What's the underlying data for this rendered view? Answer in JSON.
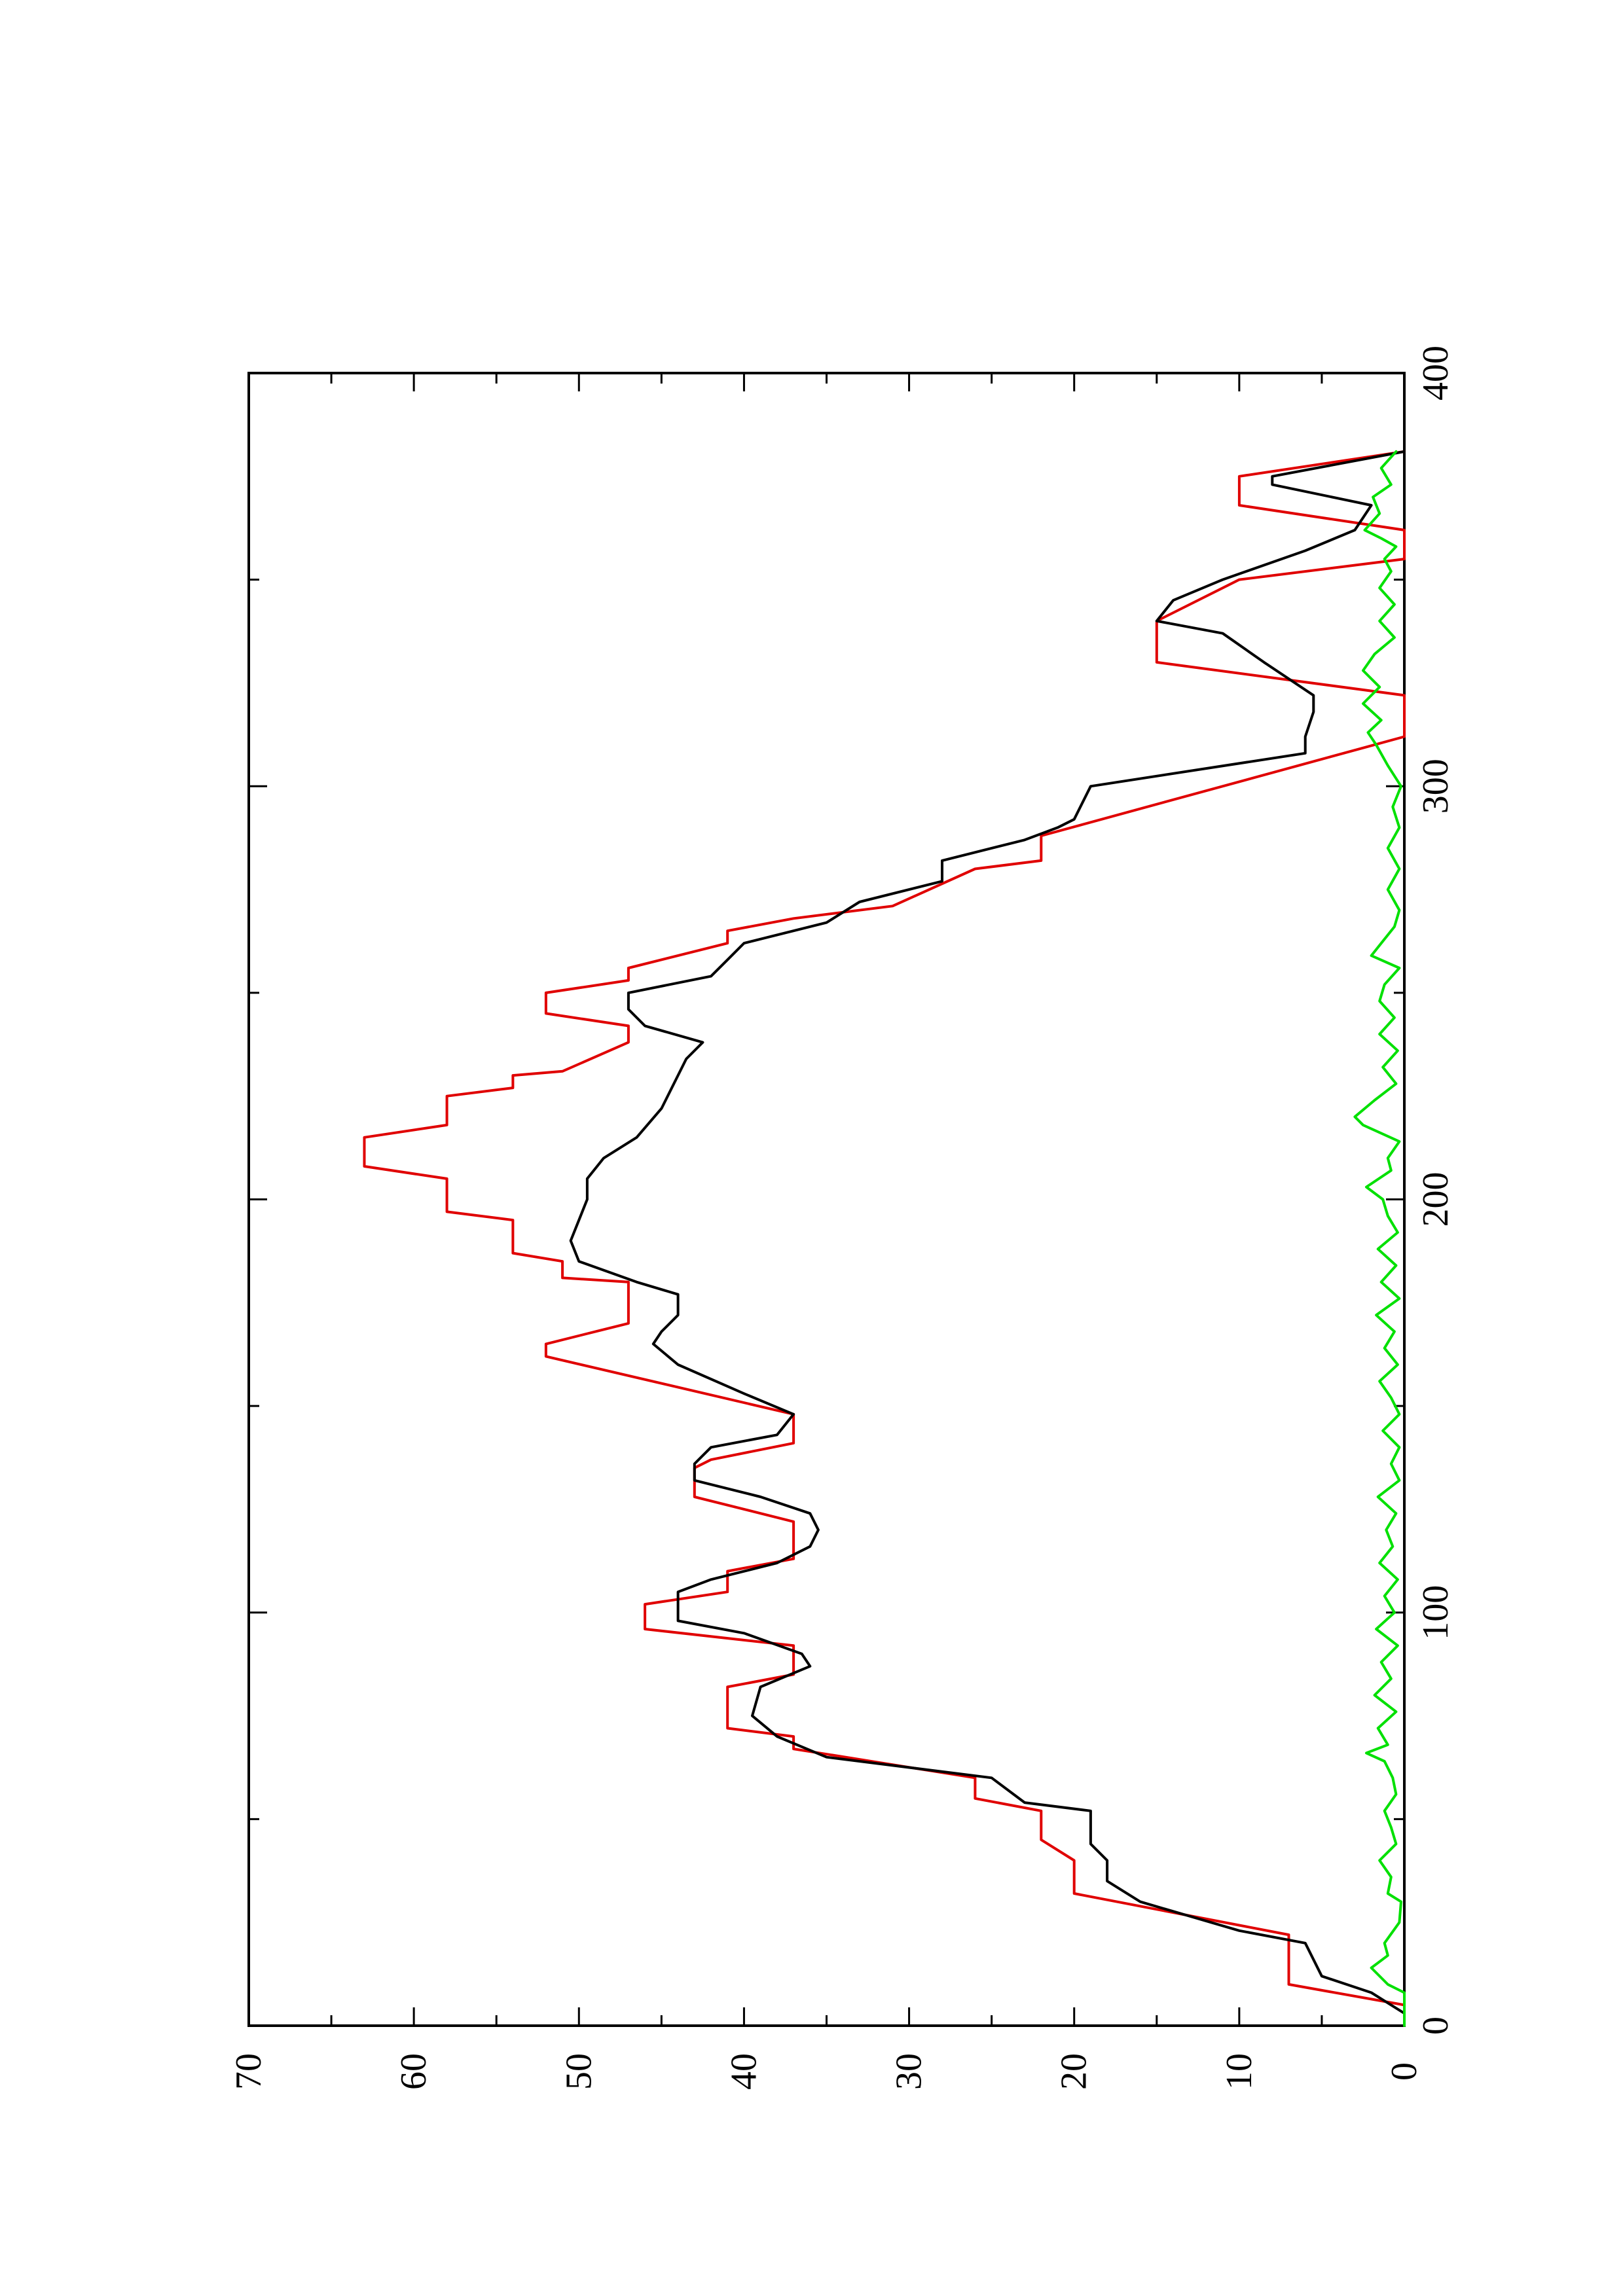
{
  "chart_data": {
    "type": "line",
    "orientation": "rotated 90° counter-clockwise (landscape plot on portrait page)",
    "title": "",
    "xlabel": "",
    "ylabel": "",
    "xlim": [
      0,
      400
    ],
    "ylim": [
      0,
      70
    ],
    "x_ticks": [
      0,
      100,
      200,
      300,
      400
    ],
    "x_tick_labels": [
      "0",
      "100",
      "200",
      "300",
      "400"
    ],
    "x_minor_ticks": [
      50,
      150,
      250,
      350
    ],
    "y_ticks": [
      0,
      10,
      20,
      30,
      40,
      50,
      60,
      70
    ],
    "y_tick_labels": [
      "0",
      "10",
      "20",
      "30",
      "40",
      "50",
      "60",
      "70"
    ],
    "y_minor_ticks": [
      5,
      15,
      25,
      35,
      45,
      55,
      65
    ],
    "grid": false,
    "legend": "none",
    "series": [
      {
        "color": "#e00000",
        "points": [
          [
            0,
            0
          ],
          [
            5,
            0
          ],
          [
            10,
            7
          ],
          [
            22,
            7
          ],
          [
            32,
            20
          ],
          [
            40,
            20
          ],
          [
            45,
            22
          ],
          [
            52,
            22
          ],
          [
            55,
            26
          ],
          [
            60,
            26
          ],
          [
            67,
            37
          ],
          [
            70,
            37
          ],
          [
            72,
            41
          ],
          [
            82,
            41
          ],
          [
            85,
            37
          ],
          [
            92,
            37
          ],
          [
            96,
            46
          ],
          [
            102,
            46
          ],
          [
            105,
            41
          ],
          [
            110,
            41
          ],
          [
            113,
            37
          ],
          [
            122,
            37
          ],
          [
            128,
            43
          ],
          [
            135,
            43
          ],
          [
            137,
            42
          ],
          [
            141,
            37
          ],
          [
            148,
            37
          ],
          [
            162,
            52
          ],
          [
            165,
            52
          ],
          [
            170,
            47
          ],
          [
            180,
            47
          ],
          [
            181,
            51
          ],
          [
            185,
            51
          ],
          [
            187,
            54
          ],
          [
            195,
            54
          ],
          [
            197,
            58
          ],
          [
            205,
            58
          ],
          [
            208,
            63
          ],
          [
            215,
            63
          ],
          [
            218,
            58
          ],
          [
            225,
            58
          ],
          [
            227,
            54
          ],
          [
            230,
            54
          ],
          [
            231,
            51
          ],
          [
            238,
            47
          ],
          [
            242,
            47
          ],
          [
            245,
            52
          ],
          [
            250,
            52
          ],
          [
            253,
            47
          ],
          [
            256,
            47
          ],
          [
            262,
            41
          ],
          [
            265,
            41
          ],
          [
            268,
            37
          ],
          [
            271,
            31
          ],
          [
            280,
            26
          ],
          [
            282,
            22
          ],
          [
            288,
            22
          ],
          [
            312,
            0
          ],
          [
            318,
            0
          ],
          [
            322,
            0
          ],
          [
            330,
            15
          ],
          [
            340,
            15
          ],
          [
            350,
            10
          ],
          [
            355,
            0
          ],
          [
            362,
            0
          ],
          [
            368,
            10
          ],
          [
            375,
            10
          ],
          [
            381,
            0
          ]
        ]
      },
      {
        "color": "#000000",
        "points": [
          [
            0,
            0
          ],
          [
            3,
            0
          ],
          [
            8,
            2
          ],
          [
            12,
            5
          ],
          [
            20,
            6
          ],
          [
            23,
            10
          ],
          [
            30,
            16
          ],
          [
            35,
            18
          ],
          [
            40,
            18
          ],
          [
            44,
            19
          ],
          [
            52,
            19
          ],
          [
            54,
            23
          ],
          [
            60,
            25
          ],
          [
            65,
            35
          ],
          [
            70,
            38
          ],
          [
            75,
            39.5
          ],
          [
            82,
            39
          ],
          [
            87,
            36
          ],
          [
            90,
            36.5
          ],
          [
            95,
            40
          ],
          [
            98,
            44
          ],
          [
            105,
            44
          ],
          [
            108,
            42
          ],
          [
            112,
            38
          ],
          [
            116,
            36
          ],
          [
            120,
            35.5
          ],
          [
            124,
            36
          ],
          [
            128,
            39
          ],
          [
            132,
            43
          ],
          [
            136,
            43
          ],
          [
            140,
            42
          ],
          [
            143,
            38
          ],
          [
            148,
            37
          ],
          [
            153,
            40
          ],
          [
            160,
            44
          ],
          [
            165,
            45.5
          ],
          [
            168,
            45
          ],
          [
            172,
            44
          ],
          [
            177,
            44
          ],
          [
            180,
            46.5
          ],
          [
            185,
            50
          ],
          [
            190,
            50.5
          ],
          [
            195,
            50
          ],
          [
            200,
            49.5
          ],
          [
            205,
            49.5
          ],
          [
            210,
            48.5
          ],
          [
            215,
            46.5
          ],
          [
            222,
            45
          ],
          [
            230,
            44
          ],
          [
            234,
            43.5
          ],
          [
            238,
            42.5
          ],
          [
            242,
            46
          ],
          [
            246,
            47
          ],
          [
            250,
            47
          ],
          [
            254,
            42
          ],
          [
            258,
            41
          ],
          [
            262,
            40
          ],
          [
            267,
            35
          ],
          [
            272,
            33
          ],
          [
            277,
            28
          ],
          [
            282,
            28
          ],
          [
            287,
            23
          ],
          [
            290,
            21
          ],
          [
            292,
            20
          ],
          [
            300,
            19
          ],
          [
            308,
            6
          ],
          [
            312,
            6
          ],
          [
            318,
            5.5
          ],
          [
            322,
            5.5
          ],
          [
            330,
            8.5
          ],
          [
            337,
            11
          ],
          [
            340,
            15
          ],
          [
            345,
            14
          ],
          [
            350,
            11
          ],
          [
            357,
            6
          ],
          [
            362,
            3
          ],
          [
            368,
            2
          ],
          [
            373,
            8
          ],
          [
            375,
            8
          ],
          [
            381,
            0
          ]
        ]
      },
      {
        "color": "#00e000",
        "points": [
          [
            0,
            0
          ],
          [
            8,
            0
          ],
          [
            10,
            1
          ],
          [
            14,
            2
          ],
          [
            17,
            1
          ],
          [
            20,
            1.2
          ],
          [
            25,
            0.3
          ],
          [
            30,
            0.2
          ],
          [
            32,
            1
          ],
          [
            36,
            0.8
          ],
          [
            40,
            1.5
          ],
          [
            44,
            0.5
          ],
          [
            48,
            0.8
          ],
          [
            52,
            1.2
          ],
          [
            56,
            0.5
          ],
          [
            60,
            0.7
          ],
          [
            64,
            1.2
          ],
          [
            66,
            2.3
          ],
          [
            68,
            1
          ],
          [
            72,
            1.6
          ],
          [
            76,
            0.5
          ],
          [
            80,
            1.8
          ],
          [
            84,
            0.8
          ],
          [
            88,
            1.4
          ],
          [
            92,
            0.4
          ],
          [
            96,
            1.7
          ],
          [
            100,
            0.6
          ],
          [
            104,
            1.2
          ],
          [
            108,
            0.4
          ],
          [
            112,
            1.5
          ],
          [
            116,
            0.7
          ],
          [
            120,
            1.1
          ],
          [
            124,
            0.5
          ],
          [
            128,
            1.6
          ],
          [
            132,
            0.3
          ],
          [
            136,
            0.8
          ],
          [
            140,
            0.3
          ],
          [
            144,
            1.3
          ],
          [
            148,
            0.3
          ],
          [
            152,
            0.8
          ],
          [
            156,
            1.5
          ],
          [
            160,
            0.4
          ],
          [
            164,
            1.2
          ],
          [
            168,
            0.6
          ],
          [
            172,
            1.7
          ],
          [
            176,
            0.3
          ],
          [
            180,
            1.4
          ],
          [
            184,
            0.5
          ],
          [
            188,
            1.6
          ],
          [
            192,
            0.4
          ],
          [
            196,
            1
          ],
          [
            200,
            1.3
          ],
          [
            203,
            2.3
          ],
          [
            207,
            0.8
          ],
          [
            210,
            1
          ],
          [
            214,
            0.3
          ],
          [
            218,
            2.5
          ],
          [
            220,
            3
          ],
          [
            224,
            1.8
          ],
          [
            228,
            0.5
          ],
          [
            232,
            1.3
          ],
          [
            236,
            0.4
          ],
          [
            240,
            1.5
          ],
          [
            244,
            0.6
          ],
          [
            248,
            1.5
          ],
          [
            252,
            1.2
          ],
          [
            256,
            0.3
          ],
          [
            259,
            2
          ],
          [
            262,
            1.4
          ],
          [
            266,
            0.6
          ],
          [
            270,
            0.3
          ],
          [
            275,
            1
          ],
          [
            280,
            0.3
          ],
          [
            285,
            1
          ],
          [
            290,
            0.3
          ],
          [
            295,
            0.7
          ],
          [
            300,
            0.2
          ],
          [
            305,
            1
          ],
          [
            310,
            1.7
          ],
          [
            313,
            2.2
          ],
          [
            316,
            1.4
          ],
          [
            320,
            2.5
          ],
          [
            324,
            1.5
          ],
          [
            328,
            2.5
          ],
          [
            332,
            1.8
          ],
          [
            336,
            0.6
          ],
          [
            340,
            1.5
          ],
          [
            344,
            0.6
          ],
          [
            348,
            1.5
          ],
          [
            352,
            0.8
          ],
          [
            355,
            1.2
          ],
          [
            358,
            0.5
          ],
          [
            360,
            1.4
          ],
          [
            362,
            2.4
          ],
          [
            366,
            1.5
          ],
          [
            370,
            1.9
          ],
          [
            373,
            0.8
          ],
          [
            377,
            1.4
          ],
          [
            381,
            0.5
          ]
        ]
      }
    ]
  }
}
